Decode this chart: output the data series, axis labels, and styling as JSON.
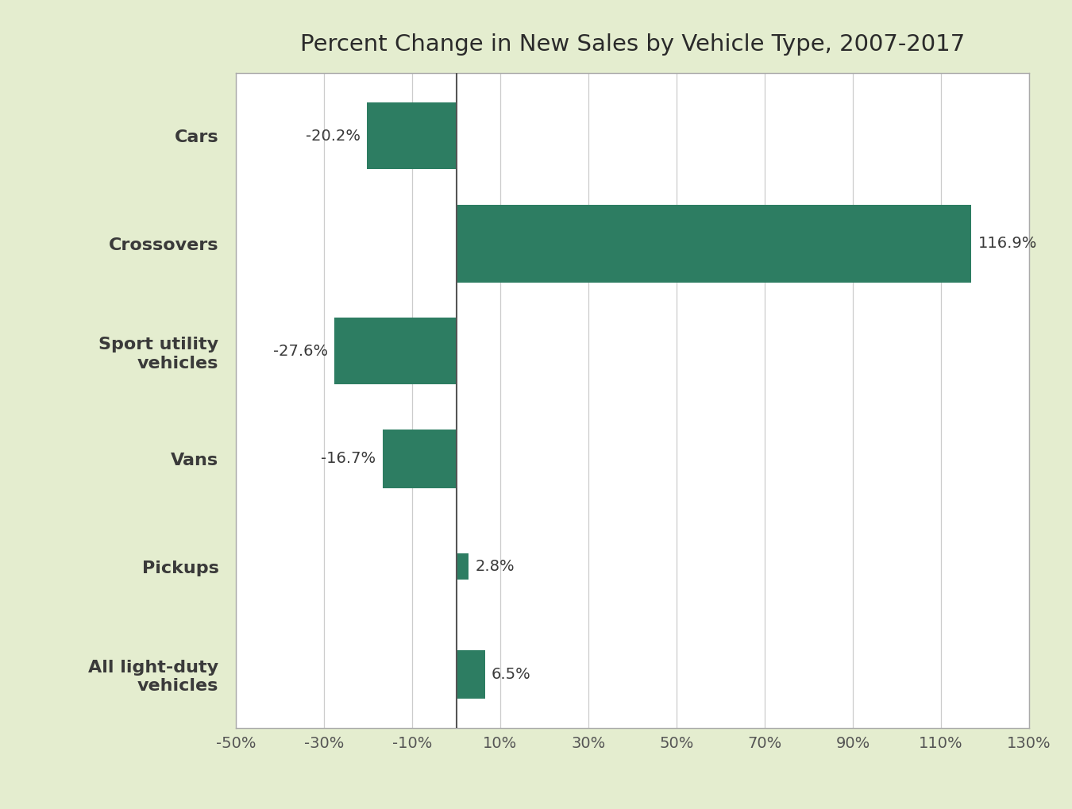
{
  "title": "Percent Change in New Sales by Vehicle Type, 2007-2017",
  "categories": [
    "Cars",
    "Crossovers",
    "Sport utility\nvehicles",
    "Vans",
    "Pickups",
    "All light-duty\nvehicles"
  ],
  "values": [
    -20.2,
    116.9,
    -27.6,
    -16.7,
    2.8,
    6.5
  ],
  "labels": [
    "-20.2%",
    "116.9%",
    "-27.6%",
    "-16.7%",
    "2.8%",
    "6.5%"
  ],
  "bar_color": "#2d7d62",
  "background_outer": "#e4edcf",
  "background_inner": "#ffffff",
  "xlim": [
    -50,
    130
  ],
  "xticks": [
    -50,
    -30,
    -10,
    10,
    30,
    50,
    70,
    90,
    110,
    130
  ],
  "xtick_labels": [
    "-50%",
    "-30%",
    "-10%",
    "10%",
    "30%",
    "50%",
    "70%",
    "90%",
    "110%",
    "130%"
  ],
  "title_fontsize": 21,
  "tick_fontsize": 14,
  "label_fontsize": 14,
  "ytick_fontsize": 16,
  "grid_color": "#cccccc",
  "vline_color": "#555555",
  "ytick_color": "#3a3a3a",
  "label_color": "#3a3a3a",
  "bar_heights": [
    0.62,
    0.72,
    0.62,
    0.55,
    0.25,
    0.45
  ]
}
